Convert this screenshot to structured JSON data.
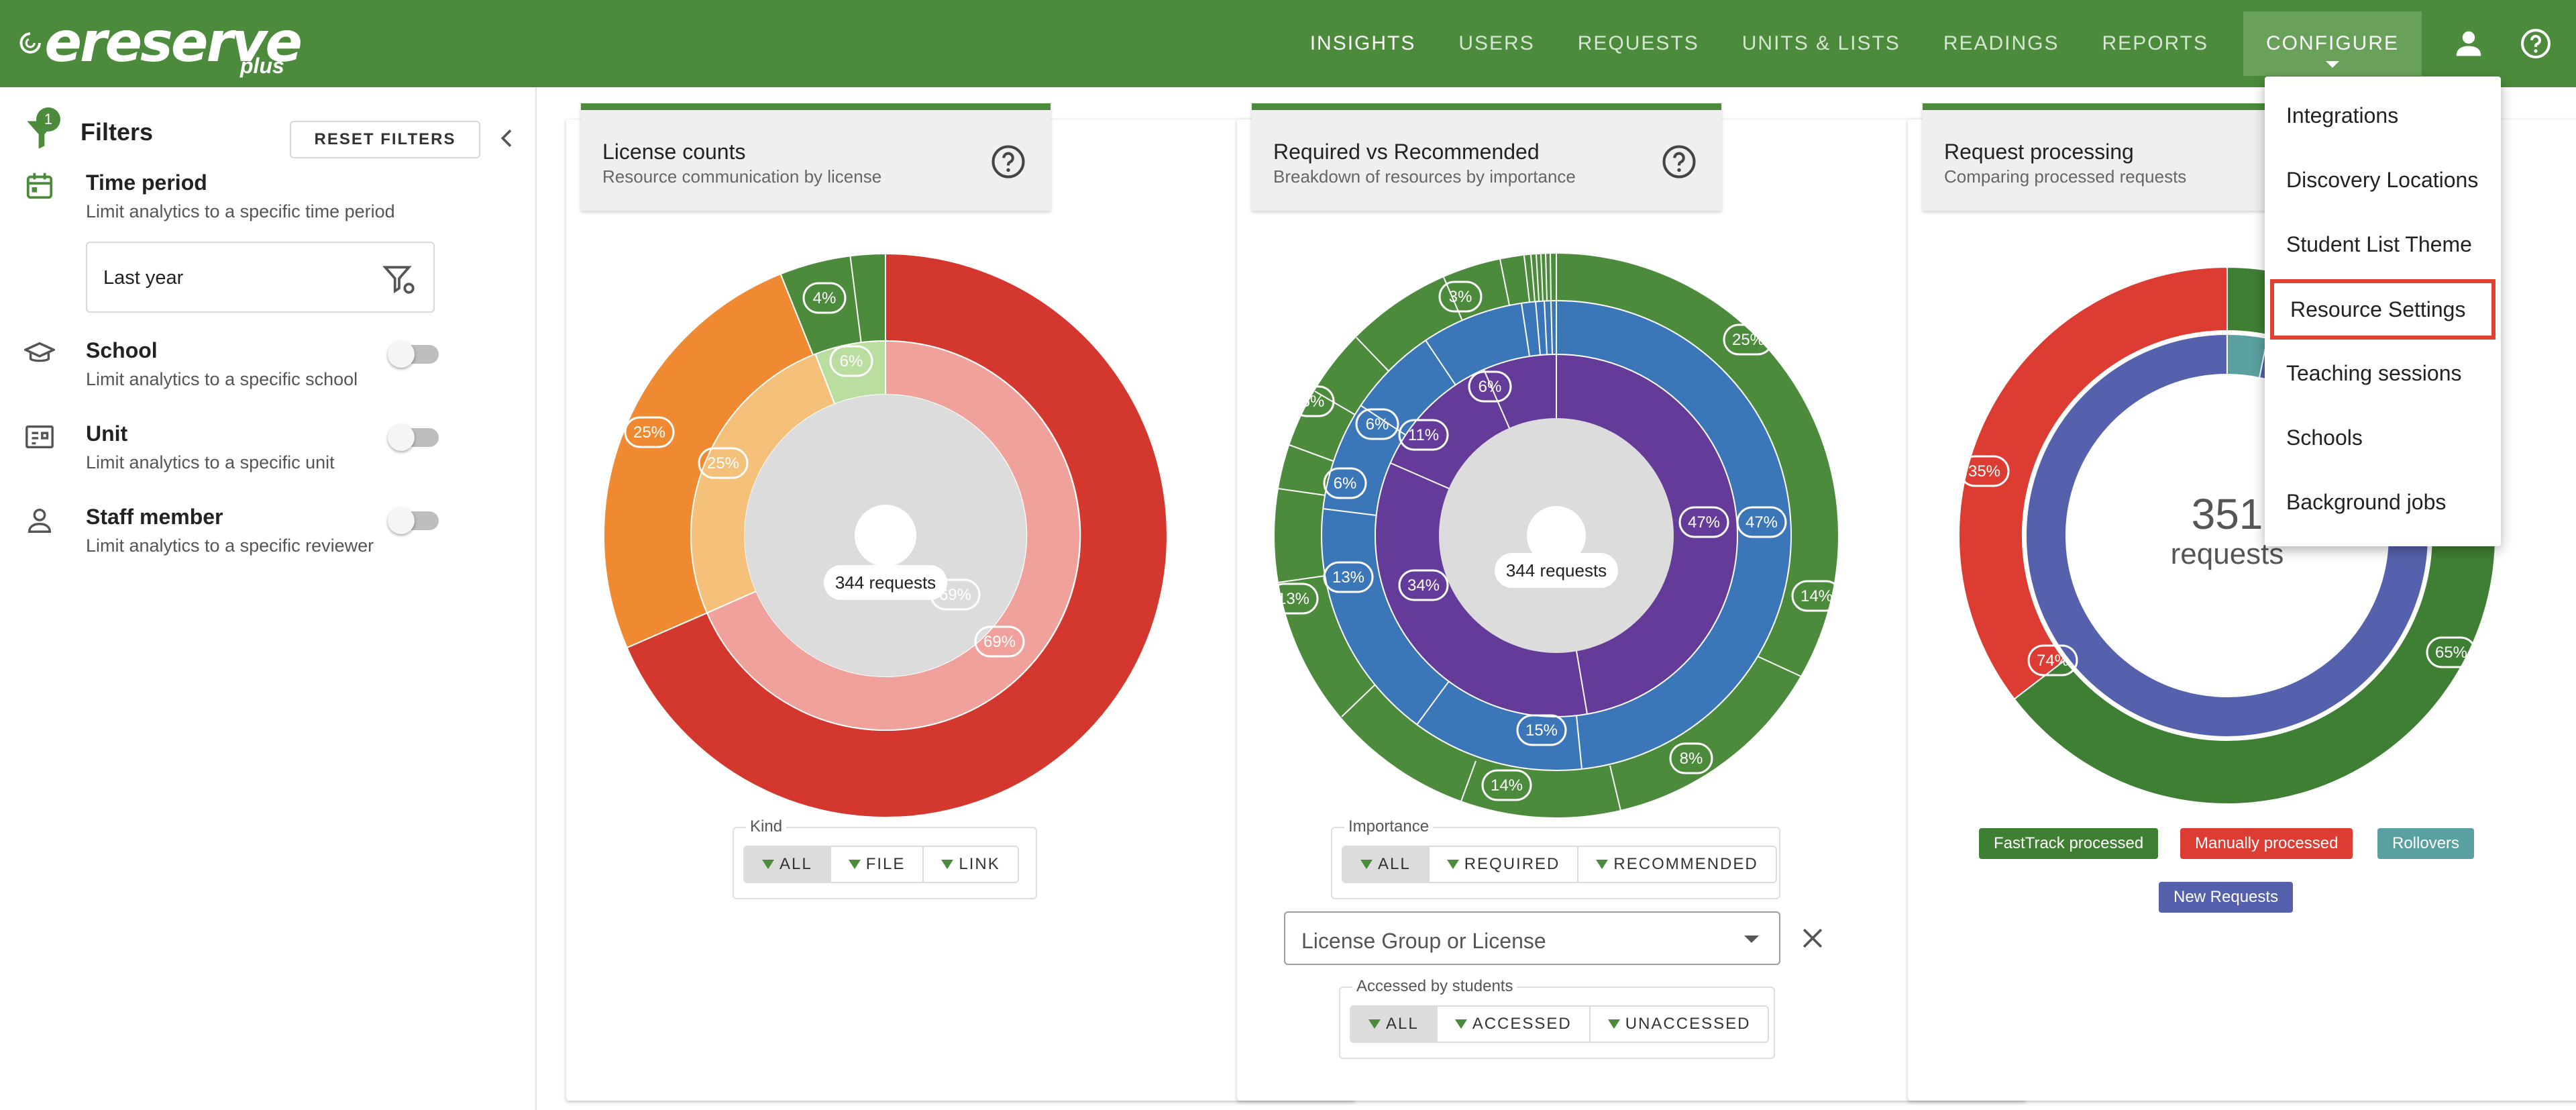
{
  "app": {
    "brand": "ereserve",
    "brand_suffix": "plus",
    "colors": {
      "topbar": "#4b8b3b",
      "accent_green": "#4b8b3b",
      "highlight_red": "#e0402f"
    }
  },
  "nav": {
    "items": [
      "INSIGHTS",
      "USERS",
      "REQUESTS",
      "UNITS & LISTS",
      "READINGS",
      "REPORTS",
      "CONFIGURE"
    ],
    "active": "INSIGHTS",
    "open": "CONFIGURE",
    "icons": [
      "user-icon",
      "help-icon"
    ]
  },
  "configure_menu": {
    "items": [
      "Integrations",
      "Discovery Locations",
      "Student List Theme",
      "Resource Settings",
      "Teaching sessions",
      "Schools",
      "Background jobs"
    ],
    "highlighted": "Resource Settings"
  },
  "filters": {
    "title": "Filters",
    "badge_count": "1",
    "reset_label": "RESET FILTERS",
    "time_period": {
      "title": "Time period",
      "desc": "Limit analytics to a specific time period",
      "value": "Last year"
    },
    "school": {
      "title": "School",
      "desc": "Limit analytics to a specific school",
      "enabled": false
    },
    "unit": {
      "title": "Unit",
      "desc": "Limit analytics to a specific unit",
      "enabled": false
    },
    "staff": {
      "title": "Staff member",
      "desc": "Limit analytics to a specific reviewer",
      "enabled": false
    }
  },
  "cards": {
    "license": {
      "title": "License counts",
      "subtitle": "Resource communication by license",
      "center_label": "344 requests",
      "group_label": "Kind",
      "buttons": [
        "ALL",
        "FILE",
        "LINK"
      ],
      "selected": "ALL"
    },
    "required": {
      "title": "Required vs Recommended",
      "subtitle": "Breakdown of resources by importance",
      "center_label": "344 requests",
      "group_label": "Importance",
      "buttons": [
        "ALL",
        "REQUIRED",
        "RECOMMENDED"
      ],
      "selected": "ALL",
      "select_placeholder": "License Group or License",
      "access_group_label": "Accessed by students",
      "access_buttons": [
        "ALL",
        "ACCESSED",
        "UNACCESSED"
      ],
      "access_selected": "ALL"
    },
    "processing": {
      "title": "Request processing",
      "subtitle": "Comparing processed requests",
      "center_value": "351",
      "center_unit": "requests",
      "legend": [
        {
          "label": "FastTrack processed",
          "color": "#3f7f33"
        },
        {
          "label": "Manually processed",
          "color": "#dd3c33"
        },
        {
          "label": "Rollovers",
          "color": "#5aa0a0"
        },
        {
          "label": "New Requests",
          "color": "#5661ad"
        }
      ]
    }
  },
  "chart_data": [
    {
      "type": "pie",
      "title": "License counts",
      "center": "344 requests",
      "rings": [
        {
          "name": "outer",
          "labels": [
            "69%",
            "25%",
            "4%"
          ],
          "values": [
            69,
            25,
            4
          ]
        },
        {
          "name": "inner",
          "labels": [
            "69%",
            "25%",
            "6%"
          ],
          "values": [
            69,
            25,
            6
          ]
        }
      ]
    },
    {
      "type": "pie",
      "title": "Required vs Recommended",
      "center": "344 requests",
      "rings": [
        {
          "name": "outer",
          "labels": [
            "25%",
            "14%",
            "8%",
            "14%",
            "13%",
            "6%",
            "3%"
          ],
          "values": [
            25,
            14,
            8,
            14,
            13,
            6,
            3
          ]
        },
        {
          "name": "middle",
          "labels": [
            "47%",
            "15%",
            "13%",
            "6%",
            "6%"
          ],
          "values": [
            47,
            15,
            13,
            6,
            6
          ]
        },
        {
          "name": "inner",
          "labels": [
            "47%",
            "34%",
            "11%",
            "6%"
          ],
          "values": [
            47,
            34,
            11,
            6
          ]
        }
      ]
    },
    {
      "type": "pie",
      "title": "Request processing",
      "center": "351 requests",
      "rings": [
        {
          "name": "outer",
          "labels": [
            "65%",
            "35%"
          ],
          "values": [
            65,
            35
          ]
        },
        {
          "name": "inner",
          "labels": [
            "74%"
          ],
          "values": [
            74
          ]
        }
      ]
    }
  ]
}
